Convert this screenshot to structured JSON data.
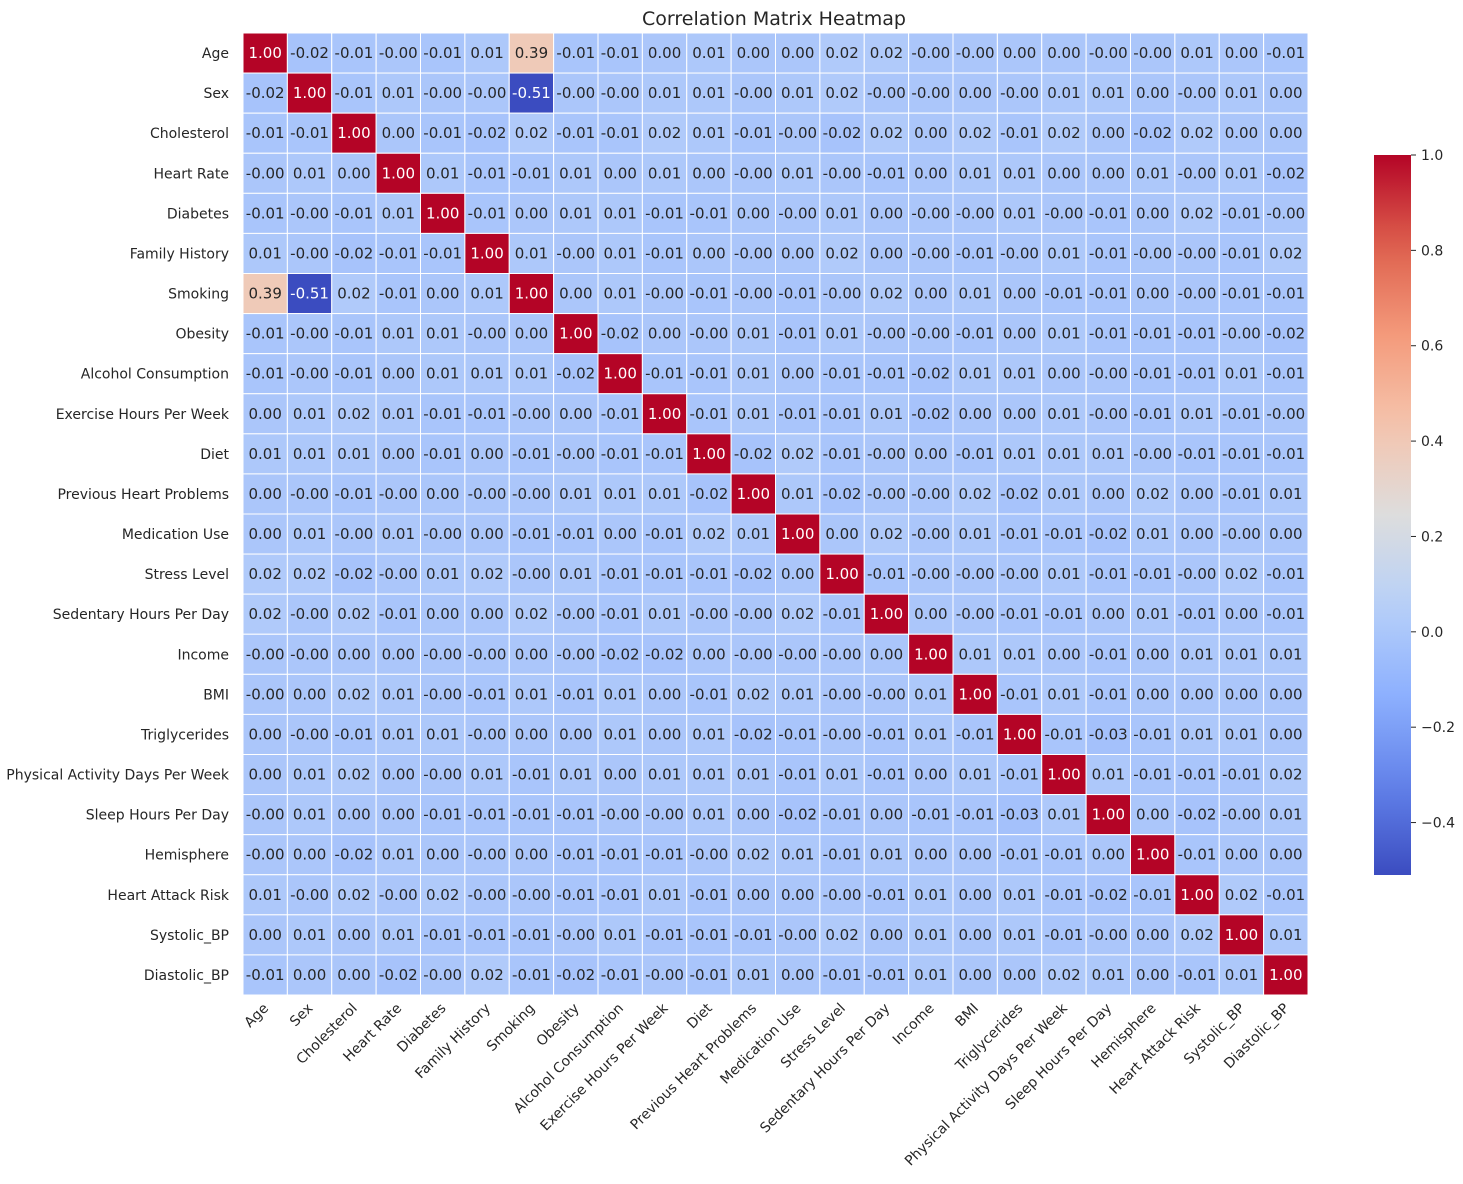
{
  "chart_data": {
    "type": "heatmap",
    "title": "Correlation Matrix Heatmap",
    "xlabel": "",
    "ylabel": "",
    "value_format": "2 decimals",
    "colormap": "coolwarm",
    "vmin": -0.51,
    "vmax": 1.0,
    "colorbar_ticks": [
      1.0,
      0.8,
      0.6,
      0.4,
      0.2,
      0.0,
      -0.2,
      -0.4
    ],
    "colorbar_tick_labels": [
      "1.0",
      "0.8",
      "0.6",
      "0.4",
      "0.2",
      "0.0",
      "−0.2",
      "−0.4"
    ],
    "categories": [
      "Age",
      "Sex",
      "Cholesterol",
      "Heart Rate",
      "Diabetes",
      "Family History",
      "Smoking",
      "Obesity",
      "Alcohol Consumption",
      "Exercise Hours Per Week",
      "Diet",
      "Previous Heart Problems",
      "Medication Use",
      "Stress Level",
      "Sedentary Hours Per Day",
      "Income",
      "BMI",
      "Triglycerides",
      "Physical Activity Days Per Week",
      "Sleep Hours Per Day",
      "Hemisphere",
      "Heart Attack Risk",
      "Systolic_BP",
      "Diastolic_BP"
    ],
    "cell_labels": [
      [
        "1.00",
        "-0.02",
        "-0.01",
        "-0.00",
        "-0.01",
        "0.01",
        "0.39",
        "-0.01",
        "-0.01",
        "0.00",
        "0.01",
        "0.00",
        "0.00",
        "0.02",
        "0.02",
        "-0.00",
        "-0.00",
        "0.00",
        "0.00",
        "-0.00",
        "-0.00",
        "0.01",
        "0.00",
        "-0.01"
      ],
      [
        "-0.02",
        "1.00",
        "-0.01",
        "0.01",
        "-0.00",
        "-0.00",
        "-0.51",
        "-0.00",
        "-0.00",
        "0.01",
        "0.01",
        "-0.00",
        "0.01",
        "0.02",
        "-0.00",
        "-0.00",
        "0.00",
        "-0.00",
        "0.01",
        "0.01",
        "0.00",
        "-0.00",
        "0.01",
        "0.00"
      ],
      [
        "-0.01",
        "-0.01",
        "1.00",
        "0.00",
        "-0.01",
        "-0.02",
        "0.02",
        "-0.01",
        "-0.01",
        "0.02",
        "0.01",
        "-0.01",
        "-0.00",
        "-0.02",
        "0.02",
        "0.00",
        "0.02",
        "-0.01",
        "0.02",
        "0.00",
        "-0.02",
        "0.02",
        "0.00",
        "0.00"
      ],
      [
        "-0.00",
        "0.01",
        "0.00",
        "1.00",
        "0.01",
        "-0.01",
        "-0.01",
        "0.01",
        "0.00",
        "0.01",
        "0.00",
        "-0.00",
        "0.01",
        "-0.00",
        "-0.01",
        "0.00",
        "0.01",
        "0.01",
        "0.00",
        "0.00",
        "0.01",
        "-0.00",
        "0.01",
        "-0.02"
      ],
      [
        "-0.01",
        "-0.00",
        "-0.01",
        "0.01",
        "1.00",
        "-0.01",
        "0.00",
        "0.01",
        "0.01",
        "-0.01",
        "-0.01",
        "0.00",
        "-0.00",
        "0.01",
        "0.00",
        "-0.00",
        "-0.00",
        "0.01",
        "-0.00",
        "-0.01",
        "0.00",
        "0.02",
        "-0.01",
        "-0.00"
      ],
      [
        "0.01",
        "-0.00",
        "-0.02",
        "-0.01",
        "-0.01",
        "1.00",
        "0.01",
        "-0.00",
        "0.01",
        "-0.01",
        "0.00",
        "-0.00",
        "0.00",
        "0.02",
        "0.00",
        "-0.00",
        "-0.01",
        "-0.00",
        "0.01",
        "-0.01",
        "-0.00",
        "-0.00",
        "-0.01",
        "0.02"
      ],
      [
        "0.39",
        "-0.51",
        "0.02",
        "-0.01",
        "0.00",
        "0.01",
        "1.00",
        "0.00",
        "0.01",
        "-0.00",
        "-0.01",
        "-0.00",
        "-0.01",
        "-0.00",
        "0.02",
        "0.00",
        "0.01",
        "0.00",
        "-0.01",
        "-0.01",
        "0.00",
        "-0.00",
        "-0.01",
        "-0.01"
      ],
      [
        "-0.01",
        "-0.00",
        "-0.01",
        "0.01",
        "0.01",
        "-0.00",
        "0.00",
        "1.00",
        "-0.02",
        "0.00",
        "-0.00",
        "0.01",
        "-0.01",
        "0.01",
        "-0.00",
        "-0.00",
        "-0.01",
        "0.00",
        "0.01",
        "-0.01",
        "-0.01",
        "-0.01",
        "-0.00",
        "-0.02"
      ],
      [
        "-0.01",
        "-0.00",
        "-0.01",
        "0.00",
        "0.01",
        "0.01",
        "0.01",
        "-0.02",
        "1.00",
        "-0.01",
        "-0.01",
        "0.01",
        "0.00",
        "-0.01",
        "-0.01",
        "-0.02",
        "0.01",
        "0.01",
        "0.00",
        "-0.00",
        "-0.01",
        "-0.01",
        "0.01",
        "-0.01"
      ],
      [
        "0.00",
        "0.01",
        "0.02",
        "0.01",
        "-0.01",
        "-0.01",
        "-0.00",
        "0.00",
        "-0.01",
        "1.00",
        "-0.01",
        "0.01",
        "-0.01",
        "-0.01",
        "0.01",
        "-0.02",
        "0.00",
        "0.00",
        "0.01",
        "-0.00",
        "-0.01",
        "0.01",
        "-0.01",
        "-0.00"
      ],
      [
        "0.01",
        "0.01",
        "0.01",
        "0.00",
        "-0.01",
        "0.00",
        "-0.01",
        "-0.00",
        "-0.01",
        "-0.01",
        "1.00",
        "-0.02",
        "0.02",
        "-0.01",
        "-0.00",
        "0.00",
        "-0.01",
        "0.01",
        "0.01",
        "0.01",
        "-0.00",
        "-0.01",
        "-0.01",
        "-0.01"
      ],
      [
        "0.00",
        "-0.00",
        "-0.01",
        "-0.00",
        "0.00",
        "-0.00",
        "-0.00",
        "0.01",
        "0.01",
        "0.01",
        "-0.02",
        "1.00",
        "0.01",
        "-0.02",
        "-0.00",
        "-0.00",
        "0.02",
        "-0.02",
        "0.01",
        "0.00",
        "0.02",
        "0.00",
        "-0.01",
        "0.01"
      ],
      [
        "0.00",
        "0.01",
        "-0.00",
        "0.01",
        "-0.00",
        "0.00",
        "-0.01",
        "-0.01",
        "0.00",
        "-0.01",
        "0.02",
        "0.01",
        "1.00",
        "0.00",
        "0.02",
        "-0.00",
        "0.01",
        "-0.01",
        "-0.01",
        "-0.02",
        "0.01",
        "0.00",
        "-0.00",
        "0.00"
      ],
      [
        "0.02",
        "0.02",
        "-0.02",
        "-0.00",
        "0.01",
        "0.02",
        "-0.00",
        "0.01",
        "-0.01",
        "-0.01",
        "-0.01",
        "-0.02",
        "0.00",
        "1.00",
        "-0.01",
        "-0.00",
        "-0.00",
        "-0.00",
        "0.01",
        "-0.01",
        "-0.01",
        "-0.00",
        "0.02",
        "-0.01"
      ],
      [
        "0.02",
        "-0.00",
        "0.02",
        "-0.01",
        "0.00",
        "0.00",
        "0.02",
        "-0.00",
        "-0.01",
        "0.01",
        "-0.00",
        "-0.00",
        "0.02",
        "-0.01",
        "1.00",
        "0.00",
        "-0.00",
        "-0.01",
        "-0.01",
        "0.00",
        "0.01",
        "-0.01",
        "0.00",
        "-0.01"
      ],
      [
        "-0.00",
        "-0.00",
        "0.00",
        "0.00",
        "-0.00",
        "-0.00",
        "0.00",
        "-0.00",
        "-0.02",
        "-0.02",
        "0.00",
        "-0.00",
        "-0.00",
        "-0.00",
        "0.00",
        "1.00",
        "0.01",
        "0.01",
        "0.00",
        "-0.01",
        "0.00",
        "0.01",
        "0.01",
        "0.01"
      ],
      [
        "-0.00",
        "0.00",
        "0.02",
        "0.01",
        "-0.00",
        "-0.01",
        "0.01",
        "-0.01",
        "0.01",
        "0.00",
        "-0.01",
        "0.02",
        "0.01",
        "-0.00",
        "-0.00",
        "0.01",
        "1.00",
        "-0.01",
        "0.01",
        "-0.01",
        "0.00",
        "0.00",
        "0.00",
        "0.00"
      ],
      [
        "0.00",
        "-0.00",
        "-0.01",
        "0.01",
        "0.01",
        "-0.00",
        "0.00",
        "0.00",
        "0.01",
        "0.00",
        "0.01",
        "-0.02",
        "-0.01",
        "-0.00",
        "-0.01",
        "0.01",
        "-0.01",
        "1.00",
        "-0.01",
        "-0.03",
        "-0.01",
        "0.01",
        "0.01",
        "0.00"
      ],
      [
        "0.00",
        "0.01",
        "0.02",
        "0.00",
        "-0.00",
        "0.01",
        "-0.01",
        "0.01",
        "0.00",
        "0.01",
        "0.01",
        "0.01",
        "-0.01",
        "0.01",
        "-0.01",
        "0.00",
        "0.01",
        "-0.01",
        "1.00",
        "0.01",
        "-0.01",
        "-0.01",
        "-0.01",
        "0.02"
      ],
      [
        "-0.00",
        "0.01",
        "0.00",
        "0.00",
        "-0.01",
        "-0.01",
        "-0.01",
        "-0.01",
        "-0.00",
        "-0.00",
        "0.01",
        "0.00",
        "-0.02",
        "-0.01",
        "0.00",
        "-0.01",
        "-0.01",
        "-0.03",
        "0.01",
        "1.00",
        "0.00",
        "-0.02",
        "-0.00",
        "0.01"
      ],
      [
        "-0.00",
        "0.00",
        "-0.02",
        "0.01",
        "0.00",
        "-0.00",
        "0.00",
        "-0.01",
        "-0.01",
        "-0.01",
        "-0.00",
        "0.02",
        "0.01",
        "-0.01",
        "0.01",
        "0.00",
        "0.00",
        "-0.01",
        "-0.01",
        "0.00",
        "1.00",
        "-0.01",
        "0.00",
        "0.00"
      ],
      [
        "0.01",
        "-0.00",
        "0.02",
        "-0.00",
        "0.02",
        "-0.00",
        "-0.00",
        "-0.01",
        "-0.01",
        "0.01",
        "-0.01",
        "0.00",
        "0.00",
        "-0.00",
        "-0.01",
        "0.01",
        "0.00",
        "0.01",
        "-0.01",
        "-0.02",
        "-0.01",
        "1.00",
        "0.02",
        "-0.01"
      ],
      [
        "0.00",
        "0.01",
        "0.00",
        "0.01",
        "-0.01",
        "-0.01",
        "-0.01",
        "-0.00",
        "0.01",
        "-0.01",
        "-0.01",
        "-0.01",
        "-0.00",
        "0.02",
        "0.00",
        "0.01",
        "0.00",
        "0.01",
        "-0.01",
        "-0.00",
        "0.00",
        "0.02",
        "1.00",
        "0.01"
      ],
      [
        "-0.01",
        "0.00",
        "0.00",
        "-0.02",
        "-0.00",
        "0.02",
        "-0.01",
        "-0.02",
        "-0.01",
        "-0.00",
        "-0.01",
        "0.01",
        "0.00",
        "-0.01",
        "-0.01",
        "0.01",
        "0.00",
        "0.00",
        "0.02",
        "0.01",
        "0.00",
        "-0.01",
        "0.01",
        "1.00"
      ]
    ]
  }
}
